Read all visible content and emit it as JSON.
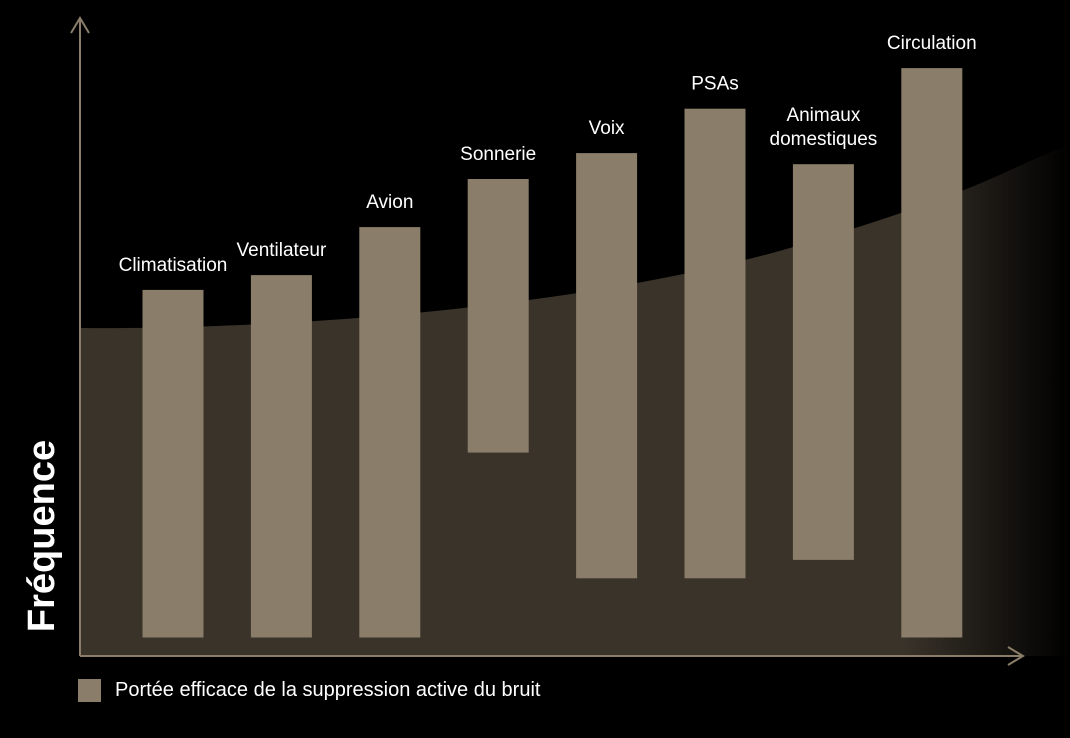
{
  "chart_data": {
    "type": "bar",
    "floating": true,
    "ylabel": "Fréquence",
    "categories": [
      [
        "Climatisation"
      ],
      [
        "Ventilateur"
      ],
      [
        "Avion"
      ],
      [
        "Sonnerie"
      ],
      [
        "Voix"
      ],
      [
        "PSAs"
      ],
      [
        "Animaux",
        "domestiques"
      ],
      [
        "Circulation"
      ]
    ],
    "ranges": [
      [
        0.05,
        0.99
      ],
      [
        0.05,
        1.03
      ],
      [
        0.05,
        1.16
      ],
      [
        0.55,
        1.29
      ],
      [
        0.21,
        1.36
      ],
      [
        0.21,
        1.48
      ],
      [
        0.26,
        1.33
      ],
      [
        0.05,
        1.59
      ]
    ],
    "ylim": [
      0,
      1.72
    ],
    "legend": {
      "label": "Portée efficace de la suppression active du bruit",
      "position": "bottom-left"
    },
    "colors": {
      "bar": "#8a7d69",
      "background": "#000000",
      "area": "#3a332a",
      "axis": "#8a7d69",
      "text": "#ffffff"
    }
  }
}
